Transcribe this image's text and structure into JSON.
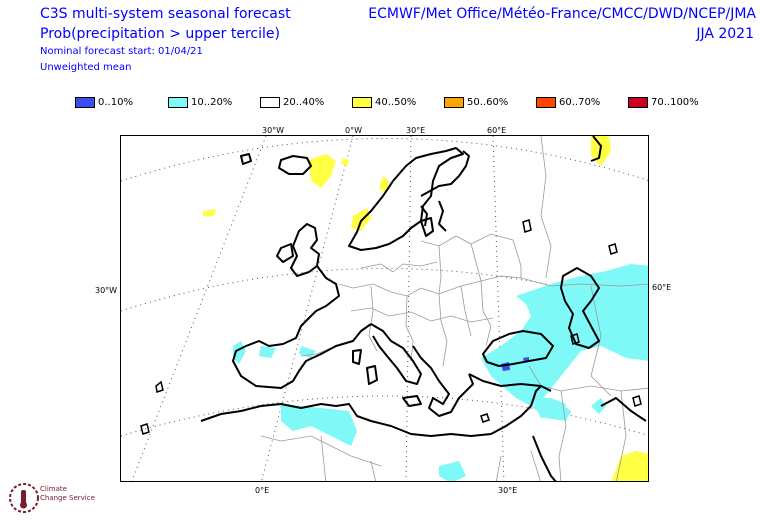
{
  "header": {
    "title_left": "C3S multi-system seasonal forecast",
    "subtitle_left": "Prob(precipitation > upper tercile)",
    "forecast_start": "Nominal forecast start: 01/04/21",
    "mean_type": "Unweighted mean",
    "title_right": "ECMWF/Met Office/Météo-France/CMCC/DWD/NCEP/JMA",
    "season": "JJA 2021"
  },
  "legend": [
    {
      "label": "0..10%",
      "color": "#3a4ef0"
    },
    {
      "label": "10..20%",
      "color": "#7ff8f8"
    },
    {
      "label": "20..40%",
      "color": "#ffffff"
    },
    {
      "label": "40..50%",
      "color": "#ffff44"
    },
    {
      "label": "50..60%",
      "color": "#ffa500"
    },
    {
      "label": "60..70%",
      "color": "#ff4500"
    },
    {
      "label": "70..100%",
      "color": "#cc0022"
    }
  ],
  "axes": {
    "top": [
      "30°W",
      "0°W",
      "30°E",
      "60°E"
    ],
    "left": "30°W",
    "right": "60°E",
    "bottom": [
      "0°E",
      "30°E"
    ]
  },
  "logo": {
    "line1": "Climate",
    "line2": "Change Service"
  },
  "colors": {
    "text_blue": "#0000ff",
    "coast": "#000000",
    "borders": "#9a9a9a",
    "grid": "#555555"
  }
}
